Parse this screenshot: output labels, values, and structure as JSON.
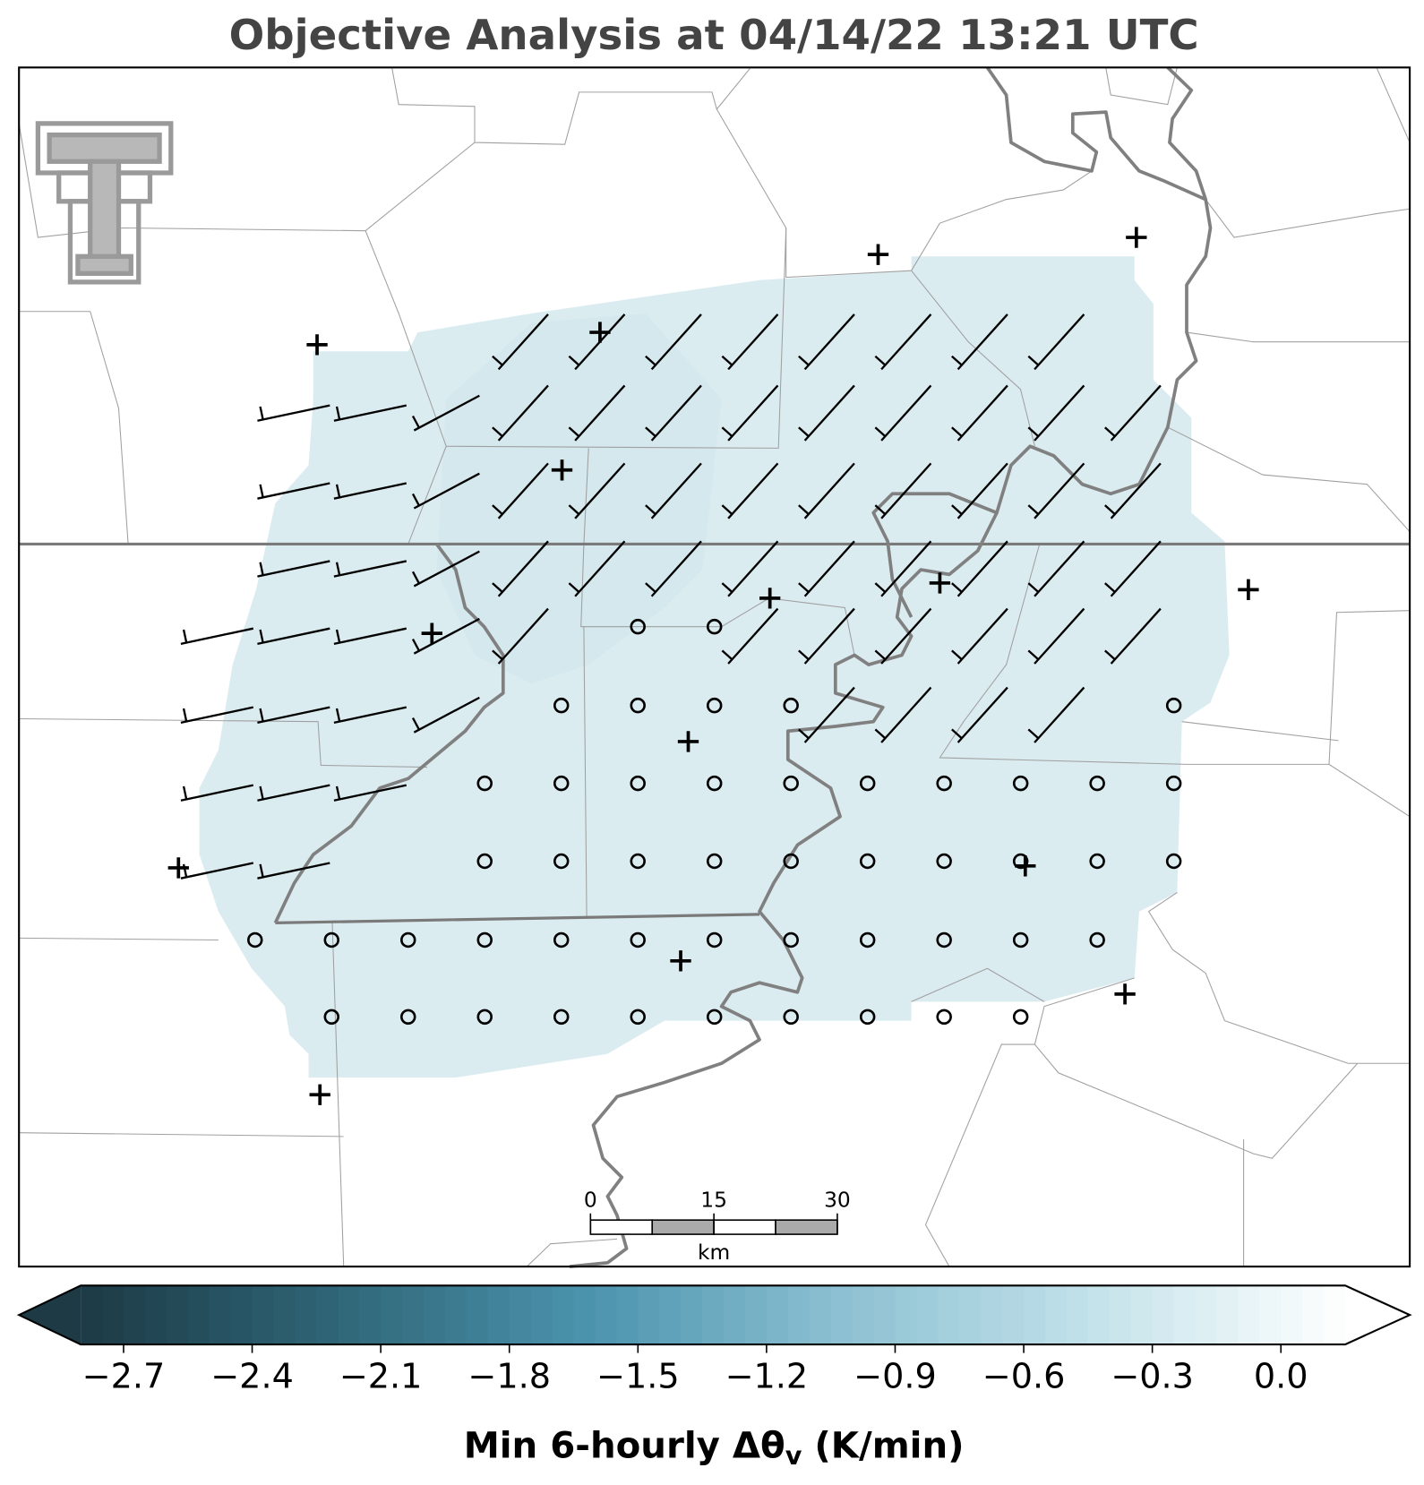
{
  "chart_data": {
    "type": "map",
    "title": "Objective Analysis at 04/14/22 13:21 UTC",
    "colorbar": {
      "label": {
        "text": "Min 6-hourly Δθ",
        "subscript": "v",
        "suffix": " (K/min)"
      },
      "clim": [
        -2.8,
        0.15
      ],
      "colormap": [
        "#1d3a45",
        "#2f6577",
        "#4b93ad",
        "#8cc0d2",
        "#c3e2ea",
        "#ffffff"
      ],
      "ticks": [
        {
          "value": -2.7,
          "label": "−2.7"
        },
        {
          "value": -2.4,
          "label": "−2.4"
        },
        {
          "value": -2.1,
          "label": "−2.1"
        },
        {
          "value": -1.8,
          "label": "−1.8"
        },
        {
          "value": -1.5,
          "label": "−1.5"
        },
        {
          "value": -1.2,
          "label": "−1.2"
        },
        {
          "value": -0.9,
          "label": "−0.9"
        },
        {
          "value": -0.6,
          "label": "−0.6"
        },
        {
          "value": -0.3,
          "label": "−0.3"
        },
        {
          "value": 0.0,
          "label": "0.0"
        }
      ]
    },
    "scale_bar": {
      "ticks": [
        0,
        15,
        30
      ],
      "unit": "km"
    }
  }
}
